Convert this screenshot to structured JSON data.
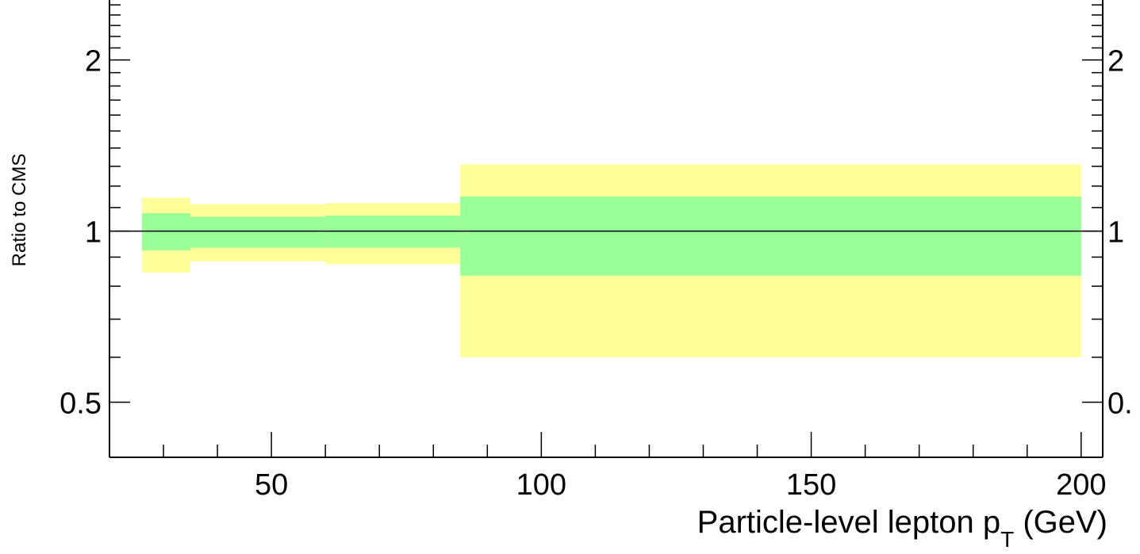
{
  "chart_data": {
    "type": "area",
    "xlabel": "Particle-level lepton p",
    "xlabel_subscript": "T",
    "xlabel_suffix": " (GeV)",
    "ylabel": "Ratio to CMS",
    "x_ticks": [
      "50",
      "100",
      "150",
      "200"
    ],
    "y_ticks": [
      "0.5",
      "1",
      "2"
    ],
    "y_ticks_right": [
      "0.",
      "1",
      "2"
    ],
    "y_scale": "log",
    "reference_line": 1,
    "xlim": [
      20,
      204
    ],
    "ylim": [
      0.4,
      2.55
    ],
    "bins": [
      {
        "x_low": 26,
        "x_high": 35,
        "inner_low": 0.925,
        "inner_high": 1.075,
        "outer_low": 0.845,
        "outer_high": 1.145
      },
      {
        "x_low": 35,
        "x_high": 60,
        "inner_low": 0.935,
        "inner_high": 1.06,
        "outer_low": 0.885,
        "outer_high": 1.115
      },
      {
        "x_low": 60,
        "x_high": 85,
        "inner_low": 0.935,
        "inner_high": 1.065,
        "outer_low": 0.875,
        "outer_high": 1.12
      },
      {
        "x_low": 85,
        "x_high": 200,
        "inner_low": 0.835,
        "inner_high": 1.15,
        "outer_low": 0.6,
        "outer_high": 1.31
      }
    ],
    "colors": {
      "inner_band": "#99ff99",
      "outer_band": "#ffff99",
      "axis": "#000000"
    }
  }
}
